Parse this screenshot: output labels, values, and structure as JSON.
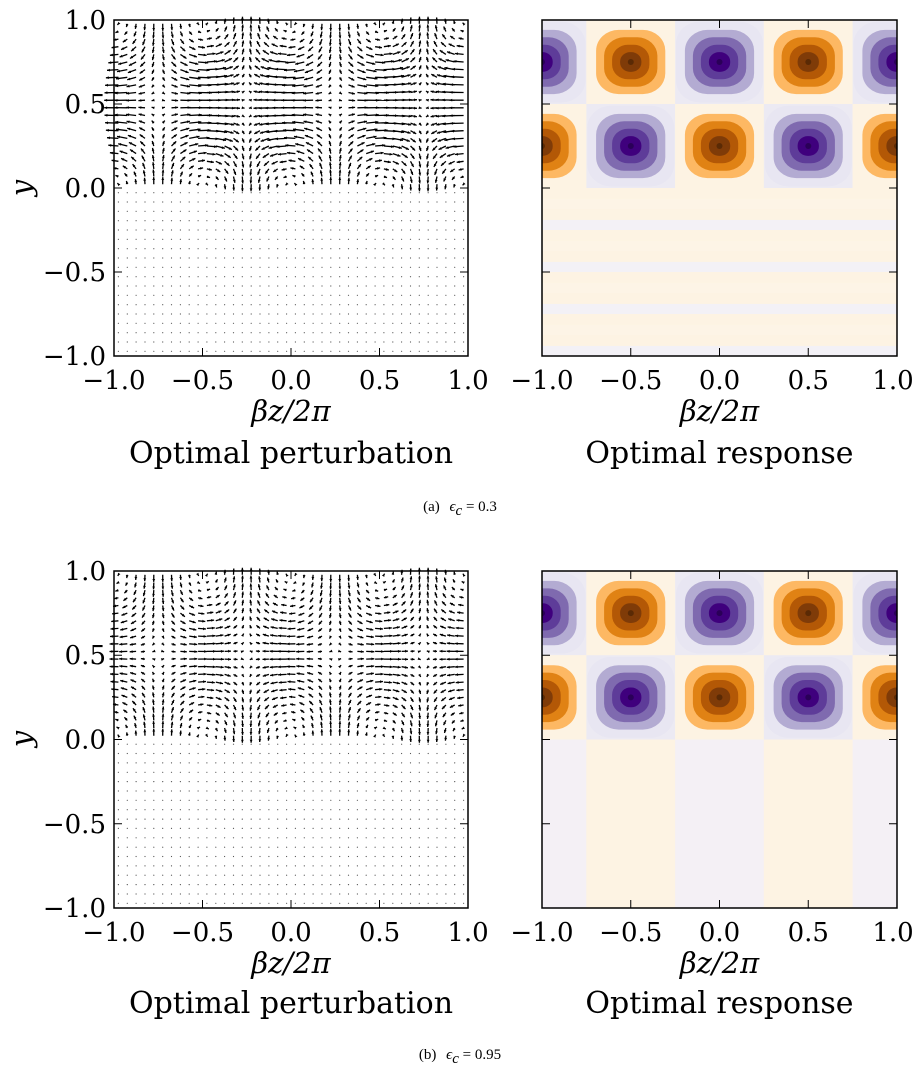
{
  "chart_data": [
    {
      "type": "quiver",
      "panel": "a",
      "title": "Optimal perturbation",
      "xlabel": "βz/2π",
      "ylabel": "y",
      "xlim": [
        -1.0,
        1.0
      ],
      "ylim": [
        -1.0,
        1.0
      ],
      "xticks": [
        "−1.0",
        "−0.5",
        "0.0",
        "0.5",
        "1.0"
      ],
      "yticks": [
        "−1.0",
        "−0.5",
        "0.0",
        "0.5",
        "1.0"
      ],
      "cell_centers_x": [
        -0.75,
        -0.25,
        0.25,
        0.75
      ],
      "cell_center_y": 0.55,
      "active_y_range": [
        0.0,
        1.0
      ],
      "arrow_color": "#000000"
    },
    {
      "type": "heatmap",
      "panel": "a",
      "title": "Optimal response",
      "xlabel": "βz/2π",
      "xlim": [
        -1.0,
        1.0
      ],
      "ylim": [
        -1.0,
        1.0
      ],
      "xticks": [
        "−1.0",
        "−0.5",
        "0.0",
        "0.5",
        "1.0"
      ],
      "extrema": [
        {
          "x": -1.0,
          "y": 0.75,
          "sign": -1
        },
        {
          "x": -0.5,
          "y": 0.75,
          "sign": 1
        },
        {
          "x": 0.0,
          "y": 0.75,
          "sign": -1
        },
        {
          "x": 0.5,
          "y": 0.75,
          "sign": 1
        },
        {
          "x": 1.0,
          "y": 0.75,
          "sign": -1
        },
        {
          "x": -1.0,
          "y": 0.25,
          "sign": 1
        },
        {
          "x": -0.5,
          "y": 0.25,
          "sign": -1
        },
        {
          "x": 0.0,
          "y": 0.25,
          "sign": 1
        },
        {
          "x": 0.5,
          "y": 0.25,
          "sign": -1
        },
        {
          "x": 1.0,
          "y": 0.25,
          "sign": 1
        }
      ],
      "colormap": [
        "#3f007d",
        "#7f6aaf",
        "#b3abd2",
        "#e8e6f2",
        "#fdf3e3",
        "#fdb863",
        "#e08214",
        "#b35806",
        "#7f3b08"
      ]
    },
    {
      "type": "quiver",
      "panel": "b",
      "title": "Optimal perturbation",
      "xlabel": "βz/2π",
      "ylabel": "y",
      "xlim": [
        -1.0,
        1.0
      ],
      "ylim": [
        -1.0,
        1.0
      ],
      "xticks": [
        "−1.0",
        "−0.5",
        "0.0",
        "0.5",
        "1.0"
      ],
      "yticks": [
        "−1.0",
        "−0.5",
        "0.0",
        "0.5",
        "1.0"
      ],
      "cell_centers_x": [
        -0.75,
        -0.25,
        0.25,
        0.75
      ],
      "cell_center_y": 0.5,
      "active_y_range": [
        0.0,
        1.0
      ],
      "arrow_color": "#000000"
    },
    {
      "type": "heatmap",
      "panel": "b",
      "title": "Optimal response",
      "xlabel": "βz/2π",
      "xlim": [
        -1.0,
        1.0
      ],
      "ylim": [
        -1.0,
        1.0
      ],
      "xticks": [
        "−1.0",
        "−0.5",
        "0.0",
        "0.5",
        "1.0"
      ],
      "extrema": [
        {
          "x": -1.0,
          "y": 0.75,
          "sign": -1
        },
        {
          "x": -0.5,
          "y": 0.75,
          "sign": 1
        },
        {
          "x": 0.0,
          "y": 0.75,
          "sign": -1
        },
        {
          "x": 0.5,
          "y": 0.75,
          "sign": 1
        },
        {
          "x": 1.0,
          "y": 0.75,
          "sign": -1
        },
        {
          "x": -1.0,
          "y": 0.25,
          "sign": 1
        },
        {
          "x": -0.5,
          "y": 0.25,
          "sign": -1
        },
        {
          "x": 0.0,
          "y": 0.25,
          "sign": 1
        },
        {
          "x": 0.5,
          "y": 0.25,
          "sign": -1
        },
        {
          "x": 1.0,
          "y": 0.25,
          "sign": 1
        }
      ],
      "colormap": [
        "#3f007d",
        "#7f6aaf",
        "#b3abd2",
        "#e8e6f2",
        "#fdf3e3",
        "#fdb863",
        "#e08214",
        "#b35806",
        "#7f3b08"
      ]
    }
  ],
  "captions": {
    "a": {
      "prefix": "(a)",
      "symbol": "ϵ",
      "sub": "c",
      "rest": " = 0.3"
    },
    "b": {
      "prefix": "(b)",
      "symbol": "ϵ",
      "sub": "c",
      "rest": " = 0.95"
    }
  }
}
